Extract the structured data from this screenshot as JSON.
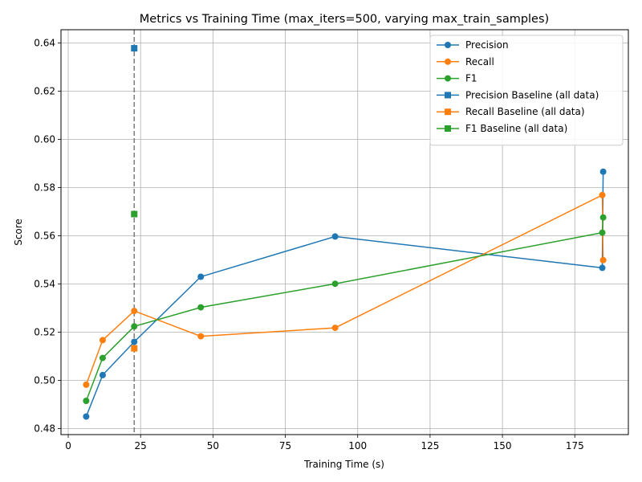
{
  "chart_data": {
    "type": "line",
    "title": "Metrics vs Training Time (max_iters=500, varying max_train_samples)",
    "xlabel": "Training Time (s)",
    "ylabel": "Score",
    "xlim": [
      -2.5,
      193.5
    ],
    "ylim": [
      0.4775,
      0.6455
    ],
    "xticks": [
      0,
      25,
      50,
      75,
      100,
      125,
      150,
      175
    ],
    "yticks": [
      0.48,
      0.5,
      0.52,
      0.54,
      0.56,
      0.58,
      0.6,
      0.62,
      0.64
    ],
    "xtick_labels": [
      "0",
      "25",
      "50",
      "75",
      "100",
      "125",
      "150",
      "175"
    ],
    "ytick_labels": [
      "0.48",
      "0.50",
      "0.52",
      "0.54",
      "0.56",
      "0.58",
      "0.60",
      "0.62",
      "0.64"
    ],
    "grid": true,
    "legend_position": "top-right",
    "vline": {
      "x": 22.8,
      "style": "dashed",
      "color": "#808080"
    },
    "series": [
      {
        "name": "Precision",
        "color": "#1f77b4",
        "marker": "circle",
        "points": [
          [
            6.2,
            0.485
          ],
          [
            11.9,
            0.5022
          ],
          [
            22.8,
            0.516
          ],
          [
            45.8,
            0.543
          ],
          [
            92.2,
            0.5597
          ],
          [
            184.5,
            0.5467
          ],
          [
            184.8,
            0.5866
          ]
        ]
      },
      {
        "name": "Recall",
        "color": "#ff7f0e",
        "marker": "circle",
        "points": [
          [
            6.2,
            0.4982
          ],
          [
            11.9,
            0.5167
          ],
          [
            22.8,
            0.5288
          ],
          [
            45.8,
            0.5183
          ],
          [
            92.2,
            0.5218
          ],
          [
            184.5,
            0.5769
          ],
          [
            184.8,
            0.5499
          ]
        ]
      },
      {
        "name": "F1",
        "color": "#2ca02c",
        "marker": "circle",
        "points": [
          [
            6.2,
            0.4915
          ],
          [
            11.9,
            0.5093
          ],
          [
            22.8,
            0.5224
          ],
          [
            45.8,
            0.5303
          ],
          [
            92.2,
            0.5401
          ],
          [
            184.5,
            0.5613
          ],
          [
            184.8,
            0.5676
          ]
        ]
      },
      {
        "name": "Precision Baseline (all data)",
        "color": "#1f77b4",
        "marker": "square",
        "points": [
          [
            22.8,
            0.6378
          ]
        ]
      },
      {
        "name": "Recall Baseline (all data)",
        "color": "#ff7f0e",
        "marker": "square",
        "points": [
          [
            22.8,
            0.5133
          ]
        ]
      },
      {
        "name": "F1 Baseline (all data)",
        "color": "#2ca02c",
        "marker": "square",
        "points": [
          [
            22.8,
            0.569
          ]
        ]
      }
    ]
  }
}
